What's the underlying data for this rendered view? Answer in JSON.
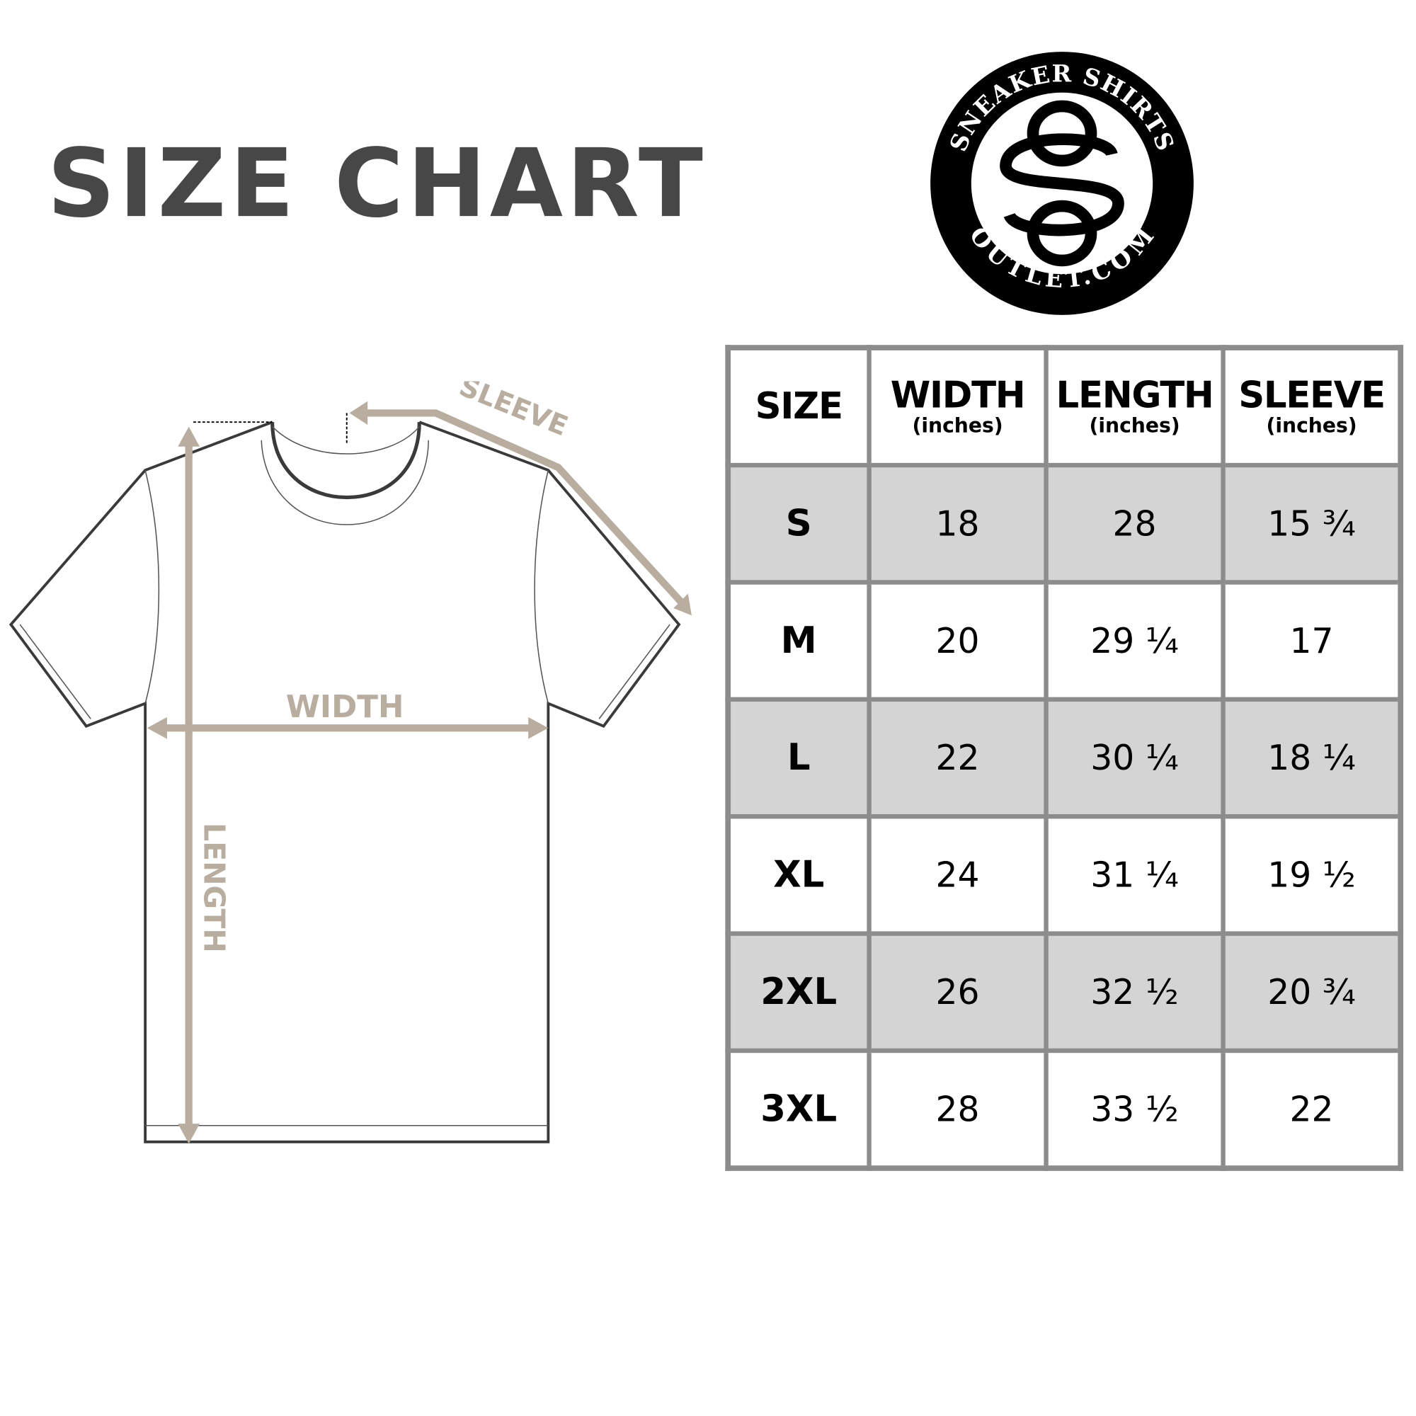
{
  "title": "SIZE CHART",
  "logo": {
    "top_text": "SNEAKER SHIRTS",
    "bottom_text": "OUTLET.COM",
    "monogram": "SO"
  },
  "diagram": {
    "sleeve_label": "SLEEVE",
    "width_label": "WIDTH",
    "length_label": "LENGTH",
    "accent_color": "#b8ad9e"
  },
  "table": {
    "headers": [
      {
        "main": "SIZE",
        "sub": ""
      },
      {
        "main": "WIDTH",
        "sub": "(inches)"
      },
      {
        "main": "LENGTH",
        "sub": "(inches)"
      },
      {
        "main": "SLEEVE",
        "sub": "(inches)"
      }
    ],
    "rows": [
      {
        "size": "S",
        "width": "18",
        "length": "28",
        "sleeve": "15 ¾"
      },
      {
        "size": "M",
        "width": "20",
        "length": "29 ¼",
        "sleeve": "17"
      },
      {
        "size": "L",
        "width": "22",
        "length": "30 ¼",
        "sleeve": "18 ¼"
      },
      {
        "size": "XL",
        "width": "24",
        "length": "31 ¼",
        "sleeve": "19 ½"
      },
      {
        "size": "2XL",
        "width": "26",
        "length": "32 ½",
        "sleeve": "20 ¾"
      },
      {
        "size": "3XL",
        "width": "28",
        "length": "33 ½",
        "sleeve": "22"
      }
    ],
    "shaded_color": "#d4d4d4",
    "border_color": "#8c8c8c"
  }
}
